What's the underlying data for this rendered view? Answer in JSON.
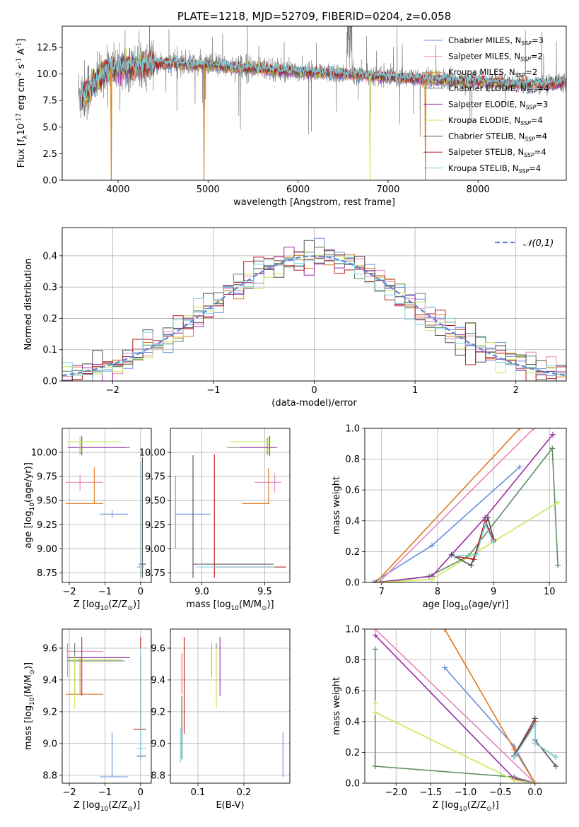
{
  "colors": {
    "chabrier_miles": "#6a8fdc",
    "salpeter_miles": "#e785bd",
    "kroupa_miles": "#de7a1f",
    "chabrier_elodie": "#5e8c63",
    "salpeter_elodie": "#9b2ba3",
    "kroupa_elodie": "#cbe65a",
    "chabrier_stelib": "#4d4d4d",
    "salpeter_stelib": "#b51c1c",
    "kroupa_stelib": "#7fd3dd",
    "data": "#808080",
    "grid": "#b0b0b0"
  },
  "chart_data": [
    {
      "id": "spectrum",
      "type": "line",
      "title": "PLATE=1218, MJD=52709, FIBERID=0204, z=0.058",
      "xlabel": "wavelength [Angstrom, rest frame]",
      "ylabel": "Flux [f$_\\lambda$10$^{-17}$ erg cm$^{-2}$ s$^{-1}$ A$^{-1}$]",
      "xlim": [
        3380,
        8980
      ],
      "ylim": [
        0,
        14.5
      ],
      "xticks": [
        4000,
        5000,
        6000,
        7000,
        8000
      ],
      "yticks": [
        0.0,
        2.5,
        5.0,
        7.5,
        10.0,
        12.5
      ],
      "grid": false,
      "legend_position": "top-right",
      "legend": [
        {
          "key": "chabrier_miles",
          "text": "Chabrier MILES, N",
          "sub": "SSP",
          "tail": "=3"
        },
        {
          "key": "salpeter_miles",
          "text": "Salpeter MILES, N",
          "sub": "SSP",
          "tail": "=2"
        },
        {
          "key": "kroupa_miles",
          "text": "Kroupa MILES, N",
          "sub": "SSP",
          "tail": "=2"
        },
        {
          "key": "chabrier_elodie",
          "text": "Chabrier ELODIE, N",
          "sub": "SSP",
          "tail": "=4"
        },
        {
          "key": "salpeter_elodie",
          "text": "Salpeter ELODIE, N",
          "sub": "SSP",
          "tail": "=3"
        },
        {
          "key": "kroupa_elodie",
          "text": "Kroupa ELODIE, N",
          "sub": "SSP",
          "tail": "=4"
        },
        {
          "key": "chabrier_stelib",
          "text": "Chabrier STELIB, N",
          "sub": "SSP",
          "tail": "=4"
        },
        {
          "key": "salpeter_stelib",
          "text": "Salpeter STELIB, N",
          "sub": "SSP",
          "tail": "=4"
        },
        {
          "key": "kroupa_stelib",
          "text": "Kroupa STELIB, N",
          "sub": "SSP",
          "tail": "=4"
        }
      ],
      "model_continuum": [
        [
          3600,
          7.8
        ],
        [
          3700,
          8.6
        ],
        [
          3800,
          9.6
        ],
        [
          3900,
          10.6
        ],
        [
          4000,
          10.5
        ],
        [
          4200,
          10.7
        ],
        [
          4500,
          11.0
        ],
        [
          5000,
          10.8
        ],
        [
          5500,
          10.5
        ],
        [
          6000,
          10.2
        ],
        [
          6500,
          10.0
        ],
        [
          7000,
          9.7
        ],
        [
          7500,
          9.4
        ],
        [
          8000,
          9.3
        ],
        [
          8500,
          9.0
        ],
        [
          8900,
          9.1
        ]
      ],
      "data_continuum": [
        [
          3560,
          8.0
        ],
        [
          3650,
          8.5
        ],
        [
          3750,
          9.5
        ],
        [
          3900,
          10.5
        ],
        [
          4000,
          10.4
        ],
        [
          4200,
          10.7
        ],
        [
          4500,
          11.0
        ],
        [
          5000,
          10.9
        ],
        [
          5500,
          10.6
        ],
        [
          6000,
          10.3
        ],
        [
          6500,
          10.1
        ],
        [
          7000,
          9.8
        ],
        [
          7500,
          9.5
        ],
        [
          8000,
          9.3
        ],
        [
          8500,
          9.1
        ],
        [
          8980,
          9.2
        ]
      ],
      "model_dips": [
        {
          "key": "kroupa_elodie",
          "x": 3925,
          "y": 0.0
        },
        {
          "key": "kroupa_miles",
          "x": 3925,
          "y": 0.0
        },
        {
          "key": "kroupa_miles",
          "x": 4955,
          "y": 0.0
        },
        {
          "key": "kroupa_elodie",
          "x": 6800,
          "y": 0.0
        },
        {
          "key": "kroupa_miles",
          "x": 7415,
          "y": 0.0
        }
      ]
    },
    {
      "id": "residuals",
      "type": "step",
      "xlabel": "(data-model)/error",
      "ylabel": "Normed distribution",
      "xlim": [
        -2.5,
        2.5
      ],
      "ylim": [
        0,
        0.49
      ],
      "xticks": [
        -2,
        -1,
        0,
        1,
        2
      ],
      "yticks": [
        0.0,
        0.1,
        0.2,
        0.3,
        0.4
      ],
      "grid": true,
      "legend_position": "top-right",
      "gaussian_label": "$\\mathcal{N}(0,1)$",
      "gaussian_color": "#5b86d9",
      "bin_width": 0.1
    },
    {
      "id": "age_vs_Z",
      "type": "errorbar",
      "xlabel": "Z [log$_{10}$(Z/Z$_\\odot$)]",
      "ylabel": "age  [log$_{10}$(age/yr)]",
      "xlim": [
        -2.2,
        0.3
      ],
      "ylim": [
        8.65,
        10.25
      ],
      "xticks": [
        -2,
        -1,
        0
      ],
      "yticks": [
        8.75,
        9.0,
        9.25,
        9.5,
        9.75,
        10.0
      ],
      "grid": true,
      "points": [
        {
          "key": "chabrier_miles",
          "x": -0.8,
          "xe": [
            -1.15,
            -0.35
          ],
          "y": 9.36,
          "ye": [
            9.32,
            9.4
          ]
        },
        {
          "key": "salpeter_miles",
          "x": -1.7,
          "xe": [
            -2.1,
            -1.05
          ],
          "y": 9.69,
          "ye": [
            9.6,
            9.77
          ]
        },
        {
          "key": "kroupa_miles",
          "x": -1.3,
          "xe": [
            -2.1,
            -1.05
          ],
          "y": 9.47,
          "ye": [
            9.47,
            9.85
          ]
        },
        {
          "key": "chabrier_elodie",
          "x": -1.7,
          "xe": [
            -2.05,
            -0.45
          ],
          "y": 10.05,
          "ye": [
            9.98,
            10.15
          ]
        },
        {
          "key": "salpeter_elodie",
          "x": -1.65,
          "xe": [
            -2.05,
            -0.3
          ],
          "y": 10.05,
          "ye": [
            9.97,
            10.17
          ]
        },
        {
          "key": "kroupa_elodie",
          "x": -1.7,
          "xe": [
            -2.05,
            -0.55
          ],
          "y": 10.11,
          "ye": [
            10.0,
            10.16
          ]
        },
        {
          "key": "chabrier_stelib",
          "x": 0.05,
          "xe": [
            -0.05,
            0.15
          ],
          "y": 8.84,
          "ye": [
            8.7,
            9.95
          ]
        },
        {
          "key": "salpeter_stelib",
          "x": 0.0,
          "xe": [
            -0.1,
            0.1
          ],
          "y": 8.81,
          "ye": [
            8.7,
            9.9
          ]
        },
        {
          "key": "kroupa_stelib",
          "x": 0.0,
          "xe": [
            -0.1,
            0.1
          ],
          "y": 8.81,
          "ye": [
            8.7,
            9.9
          ]
        }
      ]
    },
    {
      "id": "age_vs_mass",
      "type": "errorbar",
      "xlabel": "mass [log$_{10}$(M/M$_\\odot$)]",
      "ylabel": "",
      "xlim": [
        8.75,
        9.7
      ],
      "ylim": [
        8.65,
        10.25
      ],
      "xticks": [
        9.0,
        9.5
      ],
      "yticks": [
        8.75,
        9.0,
        9.25,
        9.5,
        9.75,
        10.0
      ],
      "grid": true,
      "points": [
        {
          "key": "chabrier_miles",
          "x": 8.79,
          "xe": [
            8.79,
            9.07
          ],
          "y": 9.36,
          "ye": [
            9.0,
            9.76
          ]
        },
        {
          "key": "salpeter_miles",
          "x": 9.58,
          "xe": [
            9.42,
            9.63
          ],
          "y": 9.69,
          "ye": [
            9.58,
            9.78
          ]
        },
        {
          "key": "kroupa_miles",
          "x": 9.53,
          "xe": [
            9.32,
            9.54
          ],
          "y": 9.47,
          "ye": [
            9.47,
            9.84
          ]
        },
        {
          "key": "chabrier_elodie",
          "x": 9.52,
          "xe": [
            9.2,
            9.58
          ],
          "y": 10.05,
          "ye": [
            9.97,
            10.15
          ]
        },
        {
          "key": "salpeter_elodie",
          "x": 9.54,
          "xe": [
            9.3,
            9.6
          ],
          "y": 10.05,
          "ye": [
            9.96,
            10.17
          ]
        },
        {
          "key": "kroupa_elodie",
          "x": 9.53,
          "xe": [
            9.22,
            9.55
          ],
          "y": 10.11,
          "ye": [
            9.98,
            10.16
          ]
        },
        {
          "key": "chabrier_stelib",
          "x": 8.93,
          "xe": [
            8.93,
            9.57
          ],
          "y": 8.84,
          "ye": [
            8.7,
            9.97
          ]
        },
        {
          "key": "salpeter_stelib",
          "x": 9.1,
          "xe": [
            9.1,
            9.67
          ],
          "y": 8.81,
          "ye": [
            8.7,
            9.98
          ]
        },
        {
          "key": "kroupa_stelib",
          "x": 9.0,
          "xe": [
            8.95,
            9.58
          ],
          "y": 8.81,
          "ye": [
            8.7,
            10.0
          ]
        }
      ]
    },
    {
      "id": "massweight_vs_age",
      "type": "line",
      "xlabel": "age  [log$_{10}$(age/yr)]",
      "ylabel": "mass weight",
      "xlim": [
        6.7,
        10.3
      ],
      "ylim": [
        0,
        1.0
      ],
      "xticks": [
        7,
        8,
        9,
        10
      ],
      "yticks": [
        0.0,
        0.2,
        0.4,
        0.6,
        0.8,
        1.0
      ],
      "grid": true,
      "series": [
        {
          "key": "chabrier_miles",
          "x": [
            6.85,
            7.9,
            9.47
          ],
          "y": [
            0.0,
            0.24,
            0.75
          ]
        },
        {
          "key": "salpeter_miles",
          "x": [
            6.95,
            9.72
          ],
          "y": [
            0.0,
            1.0
          ]
        },
        {
          "key": "kroupa_miles",
          "x": [
            6.9,
            9.47
          ],
          "y": [
            0.0,
            1.0
          ]
        },
        {
          "key": "chabrier_elodie",
          "x": [
            6.98,
            7.85,
            8.55,
            10.05,
            10.15
          ],
          "y": [
            0.0,
            0.04,
            0.17,
            0.87,
            0.11
          ]
        },
        {
          "key": "salpeter_elodie",
          "x": [
            6.9,
            7.9,
            8.85,
            10.06
          ],
          "y": [
            0.0,
            0.04,
            0.42,
            0.96
          ]
        },
        {
          "key": "kroupa_elodie",
          "x": [
            6.95,
            7.9,
            10.15
          ],
          "y": [
            0.0,
            0.02,
            0.52
          ]
        },
        {
          "key": "chabrier_stelib",
          "x": [
            8.25,
            8.6,
            8.9,
            9.0
          ],
          "y": [
            0.18,
            0.11,
            0.42,
            0.28
          ]
        },
        {
          "key": "salpeter_stelib",
          "x": [
            8.3,
            8.65,
            8.85,
            9.0
          ],
          "y": [
            0.17,
            0.15,
            0.4,
            0.27
          ]
        },
        {
          "key": "kroupa_stelib",
          "x": [
            8.3,
            8.7,
            8.85,
            9.0
          ],
          "y": [
            0.17,
            0.18,
            0.38,
            0.26
          ]
        }
      ]
    },
    {
      "id": "mass_vs_Z",
      "type": "errorbar",
      "xlabel": "Z [log$_{10}$(Z/Z$_\\odot$)]",
      "ylabel": "mass [log$_{10}$(M/M$_\\odot$)]",
      "xlim": [
        -2.2,
        0.3
      ],
      "ylim": [
        8.75,
        9.72
      ],
      "xticks": [
        -2,
        -1,
        0
      ],
      "yticks": [
        8.8,
        9.0,
        9.2,
        9.4,
        9.6
      ],
      "grid": true,
      "points": [
        {
          "key": "chabrier_miles",
          "x": -0.8,
          "xe": [
            -1.15,
            -0.35
          ],
          "y": 8.79,
          "ye": [
            8.79,
            9.07
          ]
        },
        {
          "key": "salpeter_miles",
          "x": -2.05,
          "xe": [
            -2.1,
            -1.05
          ],
          "y": 9.58,
          "ye": [
            9.42,
            9.63
          ]
        },
        {
          "key": "kroupa_miles",
          "x": -1.7,
          "xe": [
            -2.1,
            -1.05
          ],
          "y": 9.31,
          "ye": [
            9.31,
            9.54
          ]
        },
        {
          "key": "chabrier_elodie",
          "x": -1.85,
          "xe": [
            -2.05,
            -0.45
          ],
          "y": 9.52,
          "ye": [
            9.31,
            9.63
          ]
        },
        {
          "key": "salpeter_elodie",
          "x": -1.65,
          "xe": [
            -2.05,
            -0.3
          ],
          "y": 9.54,
          "ye": [
            9.3,
            9.67
          ]
        },
        {
          "key": "kroupa_elodie",
          "x": -1.85,
          "xe": [
            -2.05,
            -0.55
          ],
          "y": 9.53,
          "ye": [
            9.22,
            9.55
          ]
        },
        {
          "key": "chabrier_stelib",
          "x": 0.0,
          "xe": [
            -0.1,
            0.15
          ],
          "y": 8.92,
          "ye": [
            8.9,
            9.55
          ]
        },
        {
          "key": "salpeter_stelib",
          "x": 0.0,
          "xe": [
            -0.2,
            0.15
          ],
          "y": 9.09,
          "ye": [
            9.09,
            9.67
          ]
        },
        {
          "key": "kroupa_stelib",
          "x": 0.0,
          "xe": [
            -0.1,
            0.15
          ],
          "y": 8.97,
          "ye": [
            8.9,
            9.6
          ]
        }
      ]
    },
    {
      "id": "mass_vs_ebv",
      "type": "errorbar",
      "xlabel": "E(B-V)",
      "ylabel": "",
      "xlim": [
        0.04,
        0.3
      ],
      "ylim": [
        8.75,
        9.72
      ],
      "xticks": [
        0.1,
        0.2
      ],
      "yticks": [
        8.8,
        9.0,
        9.2,
        9.4,
        9.6
      ],
      "grid": true,
      "points": [
        {
          "key": "chabrier_miles",
          "x": 0.285,
          "y": 8.79,
          "ye": [
            8.79,
            9.07
          ]
        },
        {
          "key": "salpeter_miles",
          "x": 0.13,
          "y": 9.58,
          "ye": [
            9.42,
            9.63
          ]
        },
        {
          "key": "kroupa_miles",
          "x": 0.065,
          "y": 9.31,
          "ye": [
            9.31,
            9.57
          ]
        },
        {
          "key": "chabrier_elodie",
          "x": 0.14,
          "y": 9.52,
          "ye": [
            9.3,
            9.63
          ]
        },
        {
          "key": "salpeter_elodie",
          "x": 0.148,
          "y": 9.54,
          "ye": [
            9.3,
            9.67
          ]
        },
        {
          "key": "kroupa_elodie",
          "x": 0.14,
          "y": 9.53,
          "ye": [
            9.22,
            9.6
          ]
        },
        {
          "key": "chabrier_stelib",
          "x": 0.065,
          "y": 8.92,
          "ye": [
            8.9,
            9.3
          ]
        },
        {
          "key": "salpeter_stelib",
          "x": 0.07,
          "y": 9.09,
          "ye": [
            9.06,
            9.67
          ]
        },
        {
          "key": "kroupa_stelib",
          "x": 0.062,
          "y": 8.97,
          "ye": [
            8.88,
            9.1
          ]
        }
      ]
    },
    {
      "id": "massweight_vs_Z",
      "type": "line",
      "xlabel": "Z [log$_{10}$(Z/Z$_\\odot$)]",
      "ylabel": "mass weight",
      "xlim": [
        -2.45,
        0.45
      ],
      "ylim": [
        0,
        1.0
      ],
      "xticks": [
        -2.0,
        -1.5,
        -1.0,
        -0.5,
        0.0
      ],
      "yticks": [
        0.0,
        0.2,
        0.4,
        0.6,
        0.8,
        1.0
      ],
      "grid": true,
      "series": [
        {
          "key": "chabrier_miles",
          "x": [
            -1.3,
            -0.3,
            0.0
          ],
          "y": [
            0.75,
            0.24,
            0.0
          ]
        },
        {
          "key": "salpeter_miles",
          "x": [
            -2.3,
            0.0
          ],
          "y": [
            1.0,
            0.0
          ]
        },
        {
          "key": "kroupa_miles",
          "x": [
            -1.3,
            -0.3,
            0.0
          ],
          "y": [
            1.0,
            0.22,
            0.0
          ]
        },
        {
          "key": "chabrier_elodie",
          "x": [
            -2.3,
            -2.3,
            -2.3,
            -0.3,
            0.0
          ],
          "y": [
            0.87,
            0.11,
            0.11,
            0.04,
            0.0
          ]
        },
        {
          "key": "salpeter_elodie",
          "x": [
            -2.3,
            -0.3,
            0.0
          ],
          "y": [
            0.96,
            0.03,
            0.0
          ]
        },
        {
          "key": "kroupa_elodie",
          "x": [
            -2.3,
            -2.3,
            -0.3,
            0.0
          ],
          "y": [
            0.52,
            0.46,
            0.02,
            0.0
          ]
        },
        {
          "key": "chabrier_stelib",
          "x": [
            -0.3,
            0.0,
            0.0,
            0.3
          ],
          "y": [
            0.18,
            0.42,
            0.28,
            0.11
          ]
        },
        {
          "key": "salpeter_stelib",
          "x": [
            -0.3,
            0.0,
            0.0,
            0.3
          ],
          "y": [
            0.17,
            0.4,
            0.26,
            0.17
          ]
        },
        {
          "key": "kroupa_stelib",
          "x": [
            -0.3,
            0.0,
            0.0,
            0.3
          ],
          "y": [
            0.17,
            0.38,
            0.26,
            0.17
          ]
        }
      ]
    }
  ]
}
